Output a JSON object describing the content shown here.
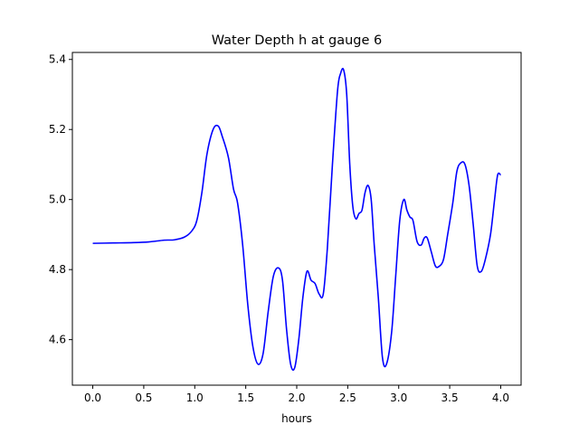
{
  "chart_data": {
    "type": "line",
    "title": "Water Depth h at gauge 6",
    "xlabel": "hours",
    "ylabel": "",
    "xlim": [
      -0.2,
      4.2
    ],
    "ylim": [
      4.47,
      5.42
    ],
    "xticks": [
      0.0,
      0.5,
      1.0,
      1.5,
      2.0,
      2.5,
      3.0,
      3.5,
      4.0
    ],
    "xtick_labels": [
      "0.0",
      "0.5",
      "1.0",
      "1.5",
      "2.0",
      "2.5",
      "3.0",
      "3.5",
      "4.0"
    ],
    "yticks": [
      4.6,
      4.8,
      5.0,
      5.2,
      5.4
    ],
    "ytick_labels": [
      "4.6",
      "4.8",
      "5.0",
      "5.2",
      "5.4"
    ],
    "grid": false,
    "series": [
      {
        "color": "#0000ff",
        "x": [
          0.0,
          0.2,
          0.4,
          0.55,
          0.7,
          0.8,
          0.9,
          0.97,
          1.02,
          1.07,
          1.12,
          1.18,
          1.23,
          1.27,
          1.33,
          1.38,
          1.42,
          1.47,
          1.52,
          1.57,
          1.62,
          1.67,
          1.72,
          1.77,
          1.82,
          1.86,
          1.9,
          1.94,
          1.98,
          2.02,
          2.06,
          2.1,
          2.14,
          2.18,
          2.22,
          2.26,
          2.3,
          2.35,
          2.4,
          2.43,
          2.46,
          2.49,
          2.52,
          2.55,
          2.58,
          2.61,
          2.64,
          2.67,
          2.7,
          2.73,
          2.76,
          2.8,
          2.84,
          2.88,
          2.93,
          2.97,
          3.01,
          3.05,
          3.08,
          3.11,
          3.14,
          3.18,
          3.22,
          3.25,
          3.28,
          3.32,
          3.36,
          3.4,
          3.44,
          3.48,
          3.53,
          3.57,
          3.61,
          3.65,
          3.69,
          3.73,
          3.77,
          3.81,
          3.85,
          3.9,
          3.94,
          3.97,
          4.0
        ],
        "y": [
          4.875,
          4.876,
          4.877,
          4.879,
          4.884,
          4.885,
          4.893,
          4.91,
          4.94,
          5.02,
          5.13,
          5.2,
          5.21,
          5.18,
          5.12,
          5.03,
          4.99,
          4.87,
          4.7,
          4.58,
          4.53,
          4.56,
          4.68,
          4.78,
          4.805,
          4.77,
          4.63,
          4.53,
          4.52,
          4.6,
          4.72,
          4.795,
          4.77,
          4.76,
          4.73,
          4.73,
          4.86,
          5.1,
          5.31,
          5.36,
          5.37,
          5.3,
          5.1,
          4.98,
          4.945,
          4.96,
          4.97,
          5.02,
          5.04,
          5.0,
          4.87,
          4.72,
          4.55,
          4.53,
          4.62,
          4.78,
          4.94,
          5.0,
          4.97,
          4.95,
          4.94,
          4.88,
          4.87,
          4.89,
          4.89,
          4.85,
          4.81,
          4.81,
          4.83,
          4.9,
          4.99,
          5.08,
          5.105,
          5.1,
          5.04,
          4.93,
          4.81,
          4.795,
          4.83,
          4.9,
          5.0,
          5.07,
          5.07
        ]
      }
    ]
  }
}
